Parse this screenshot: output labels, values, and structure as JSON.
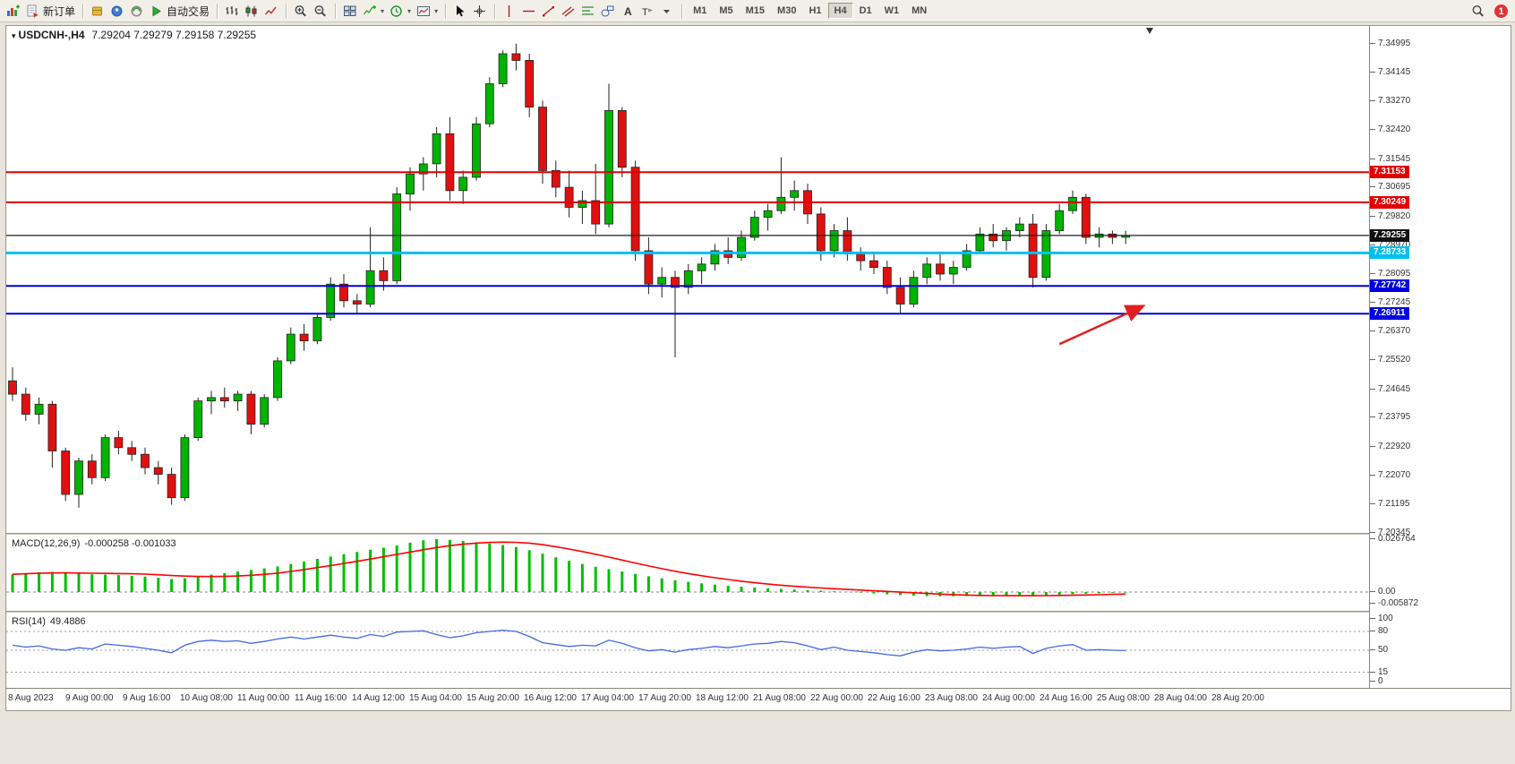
{
  "toolbar": {
    "groups": [
      {
        "items": [
          {
            "name": "new-chart",
            "icon": "chart-plus"
          },
          {
            "name": "new-order",
            "icon": "doc",
            "label": "新订单"
          }
        ]
      },
      {
        "items": [
          {
            "name": "market-watch",
            "icon": "cube-yellow"
          },
          {
            "name": "data-window",
            "icon": "circle-blue"
          },
          {
            "name": "navigator",
            "icon": "circle-green"
          },
          {
            "name": "autotrading",
            "icon": "play-green",
            "label": "自动交易"
          }
        ]
      },
      {
        "items": [
          {
            "name": "bar-chart-mode",
            "icon": "bars"
          },
          {
            "name": "candlestick-mode",
            "icon": "candles"
          },
          {
            "name": "line-chart-mode",
            "icon": "line"
          }
        ]
      },
      {
        "items": [
          {
            "name": "zoom-in",
            "icon": "zoom-in"
          },
          {
            "name": "zoom-out",
            "icon": "zoom-out"
          }
        ]
      },
      {
        "items": [
          {
            "name": "tile-windows",
            "icon": "tile"
          },
          {
            "name": "indicators",
            "icon": "indicator",
            "dropdown": true
          },
          {
            "name": "periods",
            "icon": "clock",
            "dropdown": true
          },
          {
            "name": "templates",
            "icon": "template",
            "dropdown": true
          }
        ]
      },
      {
        "items": [
          {
            "name": "cursor",
            "icon": "cursor"
          },
          {
            "name": "crosshair",
            "icon": "crosshair"
          }
        ]
      },
      {
        "items": [
          {
            "name": "vertical-line-tool",
            "icon": "vline"
          },
          {
            "name": "horizontal-line-tool",
            "icon": "hline"
          },
          {
            "name": "trendline-tool",
            "icon": "trend"
          },
          {
            "name": "equidistant-channel-tool",
            "icon": "channel"
          },
          {
            "name": "fibonacci-tool",
            "icon": "fibo"
          },
          {
            "name": "shapes-tool",
            "icon": "shapes"
          },
          {
            "name": "text-tool",
            "icon": "textA"
          },
          {
            "name": "text-label-tool",
            "icon": "labelT"
          },
          {
            "name": "more-tools",
            "icon": "caret"
          }
        ]
      },
      {
        "type": "timeframes"
      }
    ],
    "timeframes": {
      "items": [
        "M1",
        "M5",
        "M15",
        "M30",
        "H1",
        "H4",
        "D1",
        "W1",
        "MN"
      ],
      "active": "H4"
    },
    "right": {
      "badge_count": "1"
    }
  },
  "chart_data": {
    "type": "candlestick",
    "title": "USDCNH-,H4",
    "ohlc_text": "7.29204 7.29279 7.29158 7.29255",
    "quote": {
      "open": "7.29204",
      "high": "7.29279",
      "low": "7.29158",
      "close": "7.29255"
    },
    "colors": {
      "up": "#00b400",
      "down": "#e01010",
      "wick": "#222222",
      "macd_hist": "#00bf00",
      "macd_signal": "#ff0000",
      "rsi_line": "#4169e1",
      "arrow": "#e02020",
      "current_price_line": "#111111"
    },
    "price_axis": {
      "max": 7.34995,
      "min": 7.20345,
      "ticks": [
        "7.34995",
        "7.34145",
        "7.33270",
        "7.32420",
        "7.31545",
        "7.30695",
        "7.29820",
        "7.28970",
        "7.28095",
        "7.27245",
        "7.26370",
        "7.25520",
        "7.24645",
        "7.23795",
        "7.22920",
        "7.22070",
        "7.21195",
        "7.20345"
      ]
    },
    "candles": [
      [
        7.249,
        7.253,
        7.243,
        7.245
      ],
      [
        7.245,
        7.247,
        7.237,
        7.239
      ],
      [
        7.239,
        7.244,
        7.236,
        7.242
      ],
      [
        7.242,
        7.243,
        7.223,
        7.228
      ],
      [
        7.228,
        7.229,
        7.213,
        7.215
      ],
      [
        7.215,
        7.226,
        7.211,
        7.225
      ],
      [
        7.225,
        7.227,
        7.218,
        7.22
      ],
      [
        7.22,
        7.233,
        7.219,
        7.232
      ],
      [
        7.232,
        7.234,
        7.227,
        7.229
      ],
      [
        7.229,
        7.231,
        7.225,
        7.227
      ],
      [
        7.227,
        7.229,
        7.221,
        7.223
      ],
      [
        7.223,
        7.225,
        7.218,
        7.221
      ],
      [
        7.221,
        7.223,
        7.2119,
        7.214
      ],
      [
        7.214,
        7.233,
        7.213,
        7.232
      ],
      [
        7.232,
        7.244,
        7.231,
        7.243
      ],
      [
        7.243,
        7.246,
        7.239,
        7.244
      ],
      [
        7.244,
        7.247,
        7.241,
        7.243
      ],
      [
        7.243,
        7.246,
        7.24,
        7.245
      ],
      [
        7.245,
        7.246,
        7.233,
        7.236
      ],
      [
        7.236,
        7.245,
        7.235,
        7.244
      ],
      [
        7.244,
        7.256,
        7.243,
        7.255
      ],
      [
        7.255,
        7.265,
        7.254,
        7.263
      ],
      [
        7.263,
        7.266,
        7.258,
        7.261
      ],
      [
        7.261,
        7.269,
        7.26,
        7.268
      ],
      [
        7.268,
        7.28,
        7.267,
        7.278
      ],
      [
        7.278,
        7.281,
        7.271,
        7.273
      ],
      [
        7.273,
        7.275,
        7.269,
        7.272
      ],
      [
        7.272,
        7.295,
        7.271,
        7.282
      ],
      [
        7.282,
        7.286,
        7.276,
        7.279
      ],
      [
        7.279,
        7.307,
        7.278,
        7.305
      ],
      [
        7.305,
        7.313,
        7.3,
        7.311
      ],
      [
        7.311,
        7.316,
        7.306,
        7.314
      ],
      [
        7.314,
        7.325,
        7.31,
        7.323
      ],
      [
        7.323,
        7.328,
        7.303,
        7.306
      ],
      [
        7.306,
        7.312,
        7.302,
        7.31
      ],
      [
        7.31,
        7.328,
        7.309,
        7.326
      ],
      [
        7.326,
        7.34,
        7.325,
        7.338
      ],
      [
        7.338,
        7.348,
        7.337,
        7.347
      ],
      [
        7.347,
        7.35,
        7.342,
        7.345
      ],
      [
        7.345,
        7.347,
        7.328,
        7.331
      ],
      [
        7.331,
        7.333,
        7.308,
        7.312
      ],
      [
        7.312,
        7.315,
        7.304,
        7.307
      ],
      [
        7.307,
        7.312,
        7.298,
        7.301
      ],
      [
        7.301,
        7.306,
        7.296,
        7.303
      ],
      [
        7.303,
        7.314,
        7.293,
        7.296
      ],
      [
        7.296,
        7.338,
        7.295,
        7.33
      ],
      [
        7.33,
        7.331,
        7.31,
        7.313
      ],
      [
        7.313,
        7.315,
        7.285,
        7.288
      ],
      [
        7.288,
        7.292,
        7.275,
        7.278
      ],
      [
        7.278,
        7.283,
        7.274,
        7.28
      ],
      [
        7.28,
        7.282,
        7.256,
        7.277
      ],
      [
        7.277,
        7.284,
        7.275,
        7.282
      ],
      [
        7.282,
        7.286,
        7.278,
        7.284
      ],
      [
        7.284,
        7.29,
        7.282,
        7.288
      ],
      [
        7.288,
        7.292,
        7.284,
        7.286
      ],
      [
        7.286,
        7.294,
        7.285,
        7.292
      ],
      [
        7.292,
        7.3,
        7.291,
        7.298
      ],
      [
        7.298,
        7.302,
        7.294,
        7.3
      ],
      [
        7.3,
        7.316,
        7.299,
        7.304
      ],
      [
        7.304,
        7.309,
        7.3,
        7.306
      ],
      [
        7.306,
        7.308,
        7.296,
        7.299
      ],
      [
        7.299,
        7.301,
        7.285,
        7.288
      ],
      [
        7.288,
        7.296,
        7.286,
        7.294
      ],
      [
        7.294,
        7.298,
        7.285,
        7.287
      ],
      [
        7.287,
        7.289,
        7.282,
        7.285
      ],
      [
        7.285,
        7.287,
        7.281,
        7.283
      ],
      [
        7.283,
        7.285,
        7.275,
        7.277
      ],
      [
        7.277,
        7.28,
        7.269,
        7.272
      ],
      [
        7.272,
        7.282,
        7.271,
        7.28
      ],
      [
        7.28,
        7.286,
        7.278,
        7.284
      ],
      [
        7.284,
        7.287,
        7.279,
        7.281
      ],
      [
        7.281,
        7.285,
        7.278,
        7.283
      ],
      [
        7.283,
        7.29,
        7.282,
        7.288
      ],
      [
        7.288,
        7.295,
        7.287,
        7.293
      ],
      [
        7.293,
        7.296,
        7.289,
        7.291
      ],
      [
        7.291,
        7.295,
        7.288,
        7.294
      ],
      [
        7.294,
        7.298,
        7.292,
        7.296
      ],
      [
        7.296,
        7.299,
        7.277,
        7.28
      ],
      [
        7.28,
        7.296,
        7.279,
        7.294
      ],
      [
        7.294,
        7.302,
        7.293,
        7.3
      ],
      [
        7.3,
        7.306,
        7.299,
        7.304
      ],
      [
        7.304,
        7.305,
        7.29,
        7.292
      ],
      [
        7.292,
        7.295,
        7.289,
        7.293
      ],
      [
        7.293,
        7.294,
        7.29,
        7.292
      ],
      [
        7.292,
        7.294,
        7.29,
        7.29255
      ]
    ],
    "hlines": [
      {
        "price": 7.31153,
        "color": "#e00000",
        "width": 2,
        "label": "7.31153"
      },
      {
        "price": 7.30249,
        "color": "#e00000",
        "width": 2,
        "label": "7.30249"
      },
      {
        "price": 7.29255,
        "color": "#111111",
        "width": 1,
        "label": "7.29255"
      },
      {
        "price": 7.28733,
        "color": "#00c0f0",
        "width": 3,
        "label": "7.28733"
      },
      {
        "price": 7.27742,
        "color": "#0000dd",
        "width": 2,
        "label": "7.27742"
      },
      {
        "price": 7.26911,
        "color": "#0000dd",
        "width": 2,
        "label": "7.26911"
      }
    ],
    "current_price": 7.29255,
    "time_labels": [
      "8 Aug 2023",
      "9 Aug 00:00",
      "9 Aug 16:00",
      "10 Aug 08:00",
      "11 Aug 00:00",
      "11 Aug 16:00",
      "14 Aug 12:00",
      "15 Aug 04:00",
      "15 Aug 20:00",
      "16 Aug 12:00",
      "17 Aug 04:00",
      "17 Aug 20:00",
      "18 Aug 12:00",
      "21 Aug 08:00",
      "22 Aug 00:00",
      "22 Aug 16:00",
      "23 Aug 08:00",
      "24 Aug 00:00",
      "24 Aug 16:00",
      "25 Aug 08:00",
      "28 Aug 04:00",
      "28 Aug 20:00"
    ],
    "macd": {
      "label": "MACD(12,26,9)",
      "values_text": "-0.000258 -0.001033",
      "axis_max": 0.026764,
      "axis_min": -0.005872,
      "axis_labels": [
        "0.026764",
        "0.00",
        "-0.005872"
      ],
      "histogram": [
        0.009,
        0.0095,
        0.01,
        0.0102,
        0.0098,
        0.0094,
        0.009,
        0.0088,
        0.0086,
        0.0082,
        0.0078,
        0.0072,
        0.0066,
        0.007,
        0.0078,
        0.0088,
        0.0096,
        0.0104,
        0.0112,
        0.012,
        0.013,
        0.0142,
        0.0155,
        0.0168,
        0.018,
        0.0192,
        0.0203,
        0.0214,
        0.0224,
        0.0236,
        0.025,
        0.0262,
        0.0268,
        0.0264,
        0.0258,
        0.0252,
        0.0246,
        0.0238,
        0.0228,
        0.0212,
        0.0194,
        0.0176,
        0.0158,
        0.0142,
        0.0128,
        0.0116,
        0.0104,
        0.0092,
        0.008,
        0.007,
        0.006,
        0.0052,
        0.0044,
        0.0038,
        0.0032,
        0.0027,
        0.0023,
        0.0019,
        0.0016,
        0.0013,
        0.001,
        0.0007,
        0.0004,
        0.0001,
        -0.0003,
        -0.0007,
        -0.0011,
        -0.0015,
        -0.0018,
        -0.002,
        -0.0021,
        -0.0021,
        -0.002,
        -0.0019,
        -0.0017,
        -0.0015,
        -0.0016,
        -0.0018,
        -0.0016,
        -0.0013,
        -0.001,
        -0.0008,
        -0.0006,
        -0.0004,
        -0.0003
      ]
    },
    "rsi": {
      "label": "RSI(14)",
      "value_text": "49.4886",
      "levels": [
        80,
        50,
        15
      ],
      "axis_labels": [
        "100",
        "80",
        "50",
        "15",
        "0"
      ],
      "values": [
        58,
        55,
        57,
        52,
        50,
        54,
        52,
        60,
        58,
        56,
        53,
        50,
        46,
        58,
        64,
        66,
        64,
        65,
        61,
        64,
        68,
        71,
        68,
        71,
        74,
        71,
        69,
        75,
        72,
        79,
        80,
        81,
        75,
        70,
        73,
        78,
        80,
        82,
        80,
        72,
        62,
        59,
        56,
        58,
        57,
        66,
        61,
        54,
        49,
        51,
        47,
        51,
        53,
        56,
        54,
        57,
        60,
        61,
        64,
        62,
        57,
        51,
        55,
        50,
        48,
        46,
        43,
        41,
        47,
        51,
        49,
        50,
        52,
        55,
        53,
        55,
        56,
        45,
        53,
        57,
        59,
        50,
        51,
        50,
        49.49
      ]
    },
    "arrow": {
      "from_bar": 79,
      "from_price": 7.26,
      "to_bar": 85.2,
      "to_price": 7.2712
    },
    "shift_marker_bar": 85.8
  }
}
